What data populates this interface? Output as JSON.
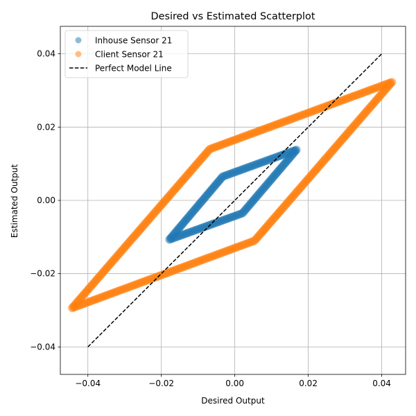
{
  "chart_data": {
    "type": "scatter",
    "title": "Desired vs Estimated Scatterplot",
    "xlabel": "Desired Output",
    "ylabel": "Estimated Output",
    "xlim": [
      -0.0475,
      0.0465
    ],
    "ylim": [
      -0.0475,
      0.0475
    ],
    "xticks": [
      -0.04,
      -0.02,
      0.0,
      0.02,
      0.04
    ],
    "xtick_labels": [
      "−0.04",
      "−0.02",
      "0.00",
      "0.02",
      "0.04"
    ],
    "yticks": [
      -0.04,
      -0.02,
      0.0,
      0.02,
      0.04
    ],
    "ytick_labels": [
      "−0.04",
      "−0.02",
      "0.00",
      "0.02",
      "0.04"
    ],
    "grid": true,
    "legend_position": "top-left",
    "series": [
      {
        "name": "Inhouse Sensor 21",
        "kind": "scatter",
        "color": "#1f77b4",
        "alpha": 0.5,
        "outline": [
          [
            -0.0178,
            -0.0107
          ],
          [
            -0.0033,
            0.0065
          ],
          [
            0.0168,
            0.0138
          ],
          [
            0.0021,
            -0.0035
          ],
          [
            -0.0178,
            -0.0107
          ]
        ]
      },
      {
        "name": "Client Sensor 21",
        "kind": "scatter",
        "color": "#ff7f0e",
        "alpha": 0.5,
        "outline": [
          [
            -0.0443,
            -0.0294
          ],
          [
            -0.0068,
            0.014
          ],
          [
            0.0428,
            0.0323
          ],
          [
            0.0054,
            -0.011
          ],
          [
            -0.0443,
            -0.0294
          ]
        ]
      },
      {
        "name": "Perfect Model Line",
        "kind": "line",
        "style": "dashed",
        "color": "#000000",
        "x": [
          -0.04,
          0.04
        ],
        "y": [
          -0.04,
          0.04
        ]
      }
    ]
  }
}
